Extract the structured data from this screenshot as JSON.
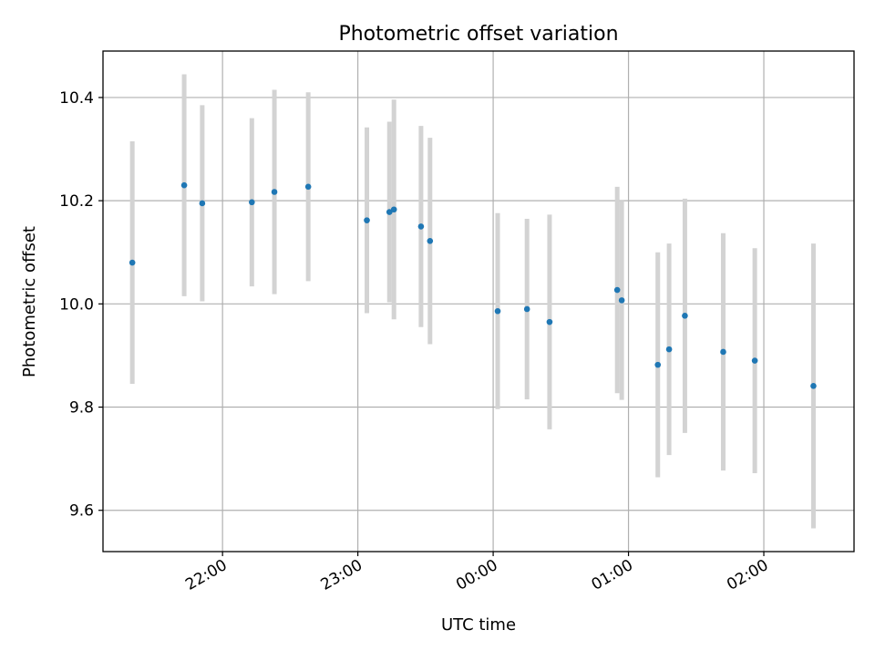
{
  "chart_data": {
    "type": "scatter",
    "title": "Photometric offset variation",
    "xlabel": "UTC time",
    "ylabel": "Photometric offset",
    "ylim": [
      9.52,
      10.49
    ],
    "xlim": [
      "21:07",
      "02:40"
    ],
    "grid": true,
    "y_ticks": [
      "9.6",
      "9.8",
      "10.0",
      "10.2",
      "10.4"
    ],
    "x_ticks": [
      "22:00",
      "23:00",
      "00:00",
      "01:00",
      "02:00"
    ],
    "colors": {
      "marker": "#1f77b4",
      "errorbar": "#d3d3d3",
      "grid": "#b0b0b0"
    },
    "points": [
      {
        "x": "21:20",
        "y": 10.08,
        "err": 0.235
      },
      {
        "x": "21:43",
        "y": 10.23,
        "err": 0.215
      },
      {
        "x": "21:51",
        "y": 10.195,
        "err": 0.19
      },
      {
        "x": "22:13",
        "y": 10.197,
        "err": 0.163
      },
      {
        "x": "22:23",
        "y": 10.217,
        "err": 0.198
      },
      {
        "x": "22:38",
        "y": 10.227,
        "err": 0.183
      },
      {
        "x": "23:04",
        "y": 10.162,
        "err": 0.18
      },
      {
        "x": "23:14",
        "y": 10.178,
        "err": 0.175
      },
      {
        "x": "23:16",
        "y": 10.183,
        "err": 0.213
      },
      {
        "x": "23:28",
        "y": 10.15,
        "err": 0.195
      },
      {
        "x": "23:32",
        "y": 10.122,
        "err": 0.2
      },
      {
        "x": "00:02",
        "y": 9.986,
        "err": 0.19
      },
      {
        "x": "00:15",
        "y": 9.99,
        "err": 0.175
      },
      {
        "x": "00:25",
        "y": 9.965,
        "err": 0.208
      },
      {
        "x": "00:55",
        "y": 10.027,
        "err": 0.2
      },
      {
        "x": "00:57",
        "y": 10.007,
        "err": 0.193
      },
      {
        "x": "01:13",
        "y": 9.882,
        "err": 0.218
      },
      {
        "x": "01:18",
        "y": 9.912,
        "err": 0.205
      },
      {
        "x": "01:25",
        "y": 9.977,
        "err": 0.227
      },
      {
        "x": "01:42",
        "y": 9.907,
        "err": 0.23
      },
      {
        "x": "01:56",
        "y": 9.89,
        "err": 0.218
      },
      {
        "x": "02:22",
        "y": 9.841,
        "err": 0.276
      }
    ]
  }
}
